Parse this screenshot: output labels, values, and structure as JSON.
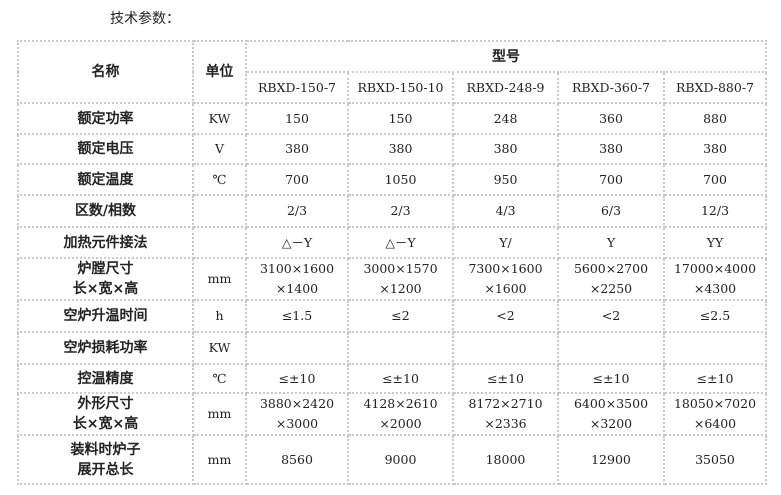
{
  "title": "技术参数：",
  "header": {
    "name": "名称",
    "unit": "单位",
    "model": "型号",
    "models": [
      "RBXD-150-7",
      "RBXD-150-10",
      "RBXD-248-9",
      "RBXD-360-7",
      "RBXD-880-7"
    ]
  },
  "rows": [
    {
      "name": [
        "额定功率"
      ],
      "unit": "KW",
      "values": [
        [
          "150"
        ],
        [
          "150"
        ],
        [
          "248"
        ],
        [
          "360"
        ],
        [
          "880"
        ]
      ]
    },
    {
      "name": [
        "额定电压"
      ],
      "unit": "V",
      "values": [
        [
          "380"
        ],
        [
          "380"
        ],
        [
          "380"
        ],
        [
          "380"
        ],
        [
          "380"
        ]
      ]
    },
    {
      "name": [
        "额定温度"
      ],
      "unit": "℃",
      "values": [
        [
          "700"
        ],
        [
          "1050"
        ],
        [
          "950"
        ],
        [
          "700"
        ],
        [
          "700"
        ]
      ]
    },
    {
      "name": [
        "区数/相数"
      ],
      "unit": "",
      "values": [
        [
          "2/3"
        ],
        [
          "2/3"
        ],
        [
          "4/3"
        ],
        [
          "6/3"
        ],
        [
          "12/3"
        ]
      ]
    },
    {
      "name": [
        "加热元件接法"
      ],
      "unit": "",
      "values": [
        [
          "△－Y"
        ],
        [
          "△－Y"
        ],
        [
          "Y/"
        ],
        [
          "Y"
        ],
        [
          "YY"
        ]
      ]
    },
    {
      "name": [
        "炉膛尺寸",
        "长×宽×高"
      ],
      "unit": "mm",
      "values": [
        [
          "3100×1600",
          "×1400"
        ],
        [
          "3000×1570",
          "×1200"
        ],
        [
          "7300×1600",
          "×1600"
        ],
        [
          "5600×2700",
          "×2250"
        ],
        [
          "17000×4000",
          "×4300"
        ]
      ]
    },
    {
      "name": [
        "空炉升温时间"
      ],
      "unit": "h",
      "values": [
        [
          "≤1.5"
        ],
        [
          "≤2"
        ],
        [
          "<2"
        ],
        [
          "<2"
        ],
        [
          "≤2.5"
        ]
      ]
    },
    {
      "name": [
        "空炉损耗功率"
      ],
      "unit": "KW",
      "values": [
        [
          ""
        ],
        [
          ""
        ],
        [
          ""
        ],
        [
          ""
        ],
        [
          ""
        ]
      ]
    },
    {
      "name": [
        "控温精度"
      ],
      "unit": "℃",
      "values": [
        [
          "≤±10"
        ],
        [
          "≤±10"
        ],
        [
          "≤±10"
        ],
        [
          "≤±10"
        ],
        [
          "≤±10"
        ]
      ]
    },
    {
      "name": [
        "外形尺寸",
        "长×宽×高"
      ],
      "unit": "mm",
      "values": [
        [
          "3880×2420",
          "×3000"
        ],
        [
          "4128×2610",
          "×2000"
        ],
        [
          "8172×2710",
          "×2336"
        ],
        [
          "6400×3500",
          "×3200"
        ],
        [
          "18050×7020",
          "×6400"
        ]
      ]
    },
    {
      "name": [
        "装料时炉子",
        "展开总长"
      ],
      "unit": "mm",
      "values": [
        [
          "8560"
        ],
        [
          "9000"
        ],
        [
          "18000"
        ],
        [
          "12900"
        ],
        [
          "35050"
        ]
      ]
    }
  ]
}
